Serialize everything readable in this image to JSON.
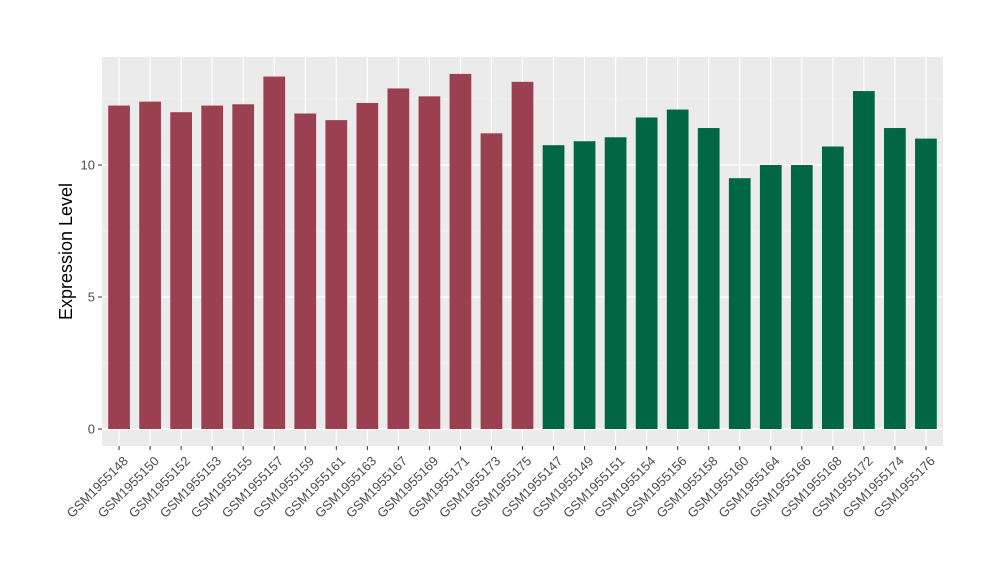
{
  "chart_data": {
    "type": "bar",
    "title": "",
    "xlabel": "",
    "ylabel": "Expression Level",
    "ylim": [
      0,
      13.8
    ],
    "yticks": [
      0,
      5,
      10
    ],
    "grid": true,
    "legend": "none",
    "categories": [
      "GSM1955148",
      "GSM1955150",
      "GSM1955152",
      "GSM1955153",
      "GSM1955155",
      "GSM1955157",
      "GSM1955159",
      "GSM1955161",
      "GSM1955163",
      "GSM1955167",
      "GSM1955169",
      "GSM1955171",
      "GSM1955173",
      "GSM1955175",
      "GSM1955147",
      "GSM1955149",
      "GSM1955151",
      "GSM1955154",
      "GSM1955156",
      "GSM1955158",
      "GSM1955160",
      "GSM1955164",
      "GSM1955166",
      "GSM1955168",
      "GSM1955172",
      "GSM1955174",
      "GSM1955176"
    ],
    "values": [
      12.25,
      12.4,
      12.0,
      12.25,
      12.3,
      13.35,
      11.95,
      11.7,
      12.35,
      12.9,
      12.6,
      13.45,
      11.2,
      13.15,
      10.75,
      10.9,
      11.05,
      11.8,
      12.1,
      11.4,
      9.5,
      10.0,
      10.0,
      10.7,
      12.8,
      11.4,
      11.0
    ],
    "colors": [
      "#9b4050",
      "#9b4050",
      "#9b4050",
      "#9b4050",
      "#9b4050",
      "#9b4050",
      "#9b4050",
      "#9b4050",
      "#9b4050",
      "#9b4050",
      "#9b4050",
      "#9b4050",
      "#9b4050",
      "#9b4050",
      "#006643",
      "#006643",
      "#006643",
      "#006643",
      "#006643",
      "#006643",
      "#006643",
      "#006643",
      "#006643",
      "#006643",
      "#006643",
      "#006643",
      "#006643"
    ]
  }
}
